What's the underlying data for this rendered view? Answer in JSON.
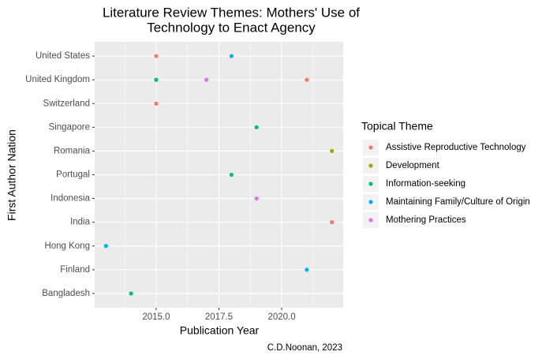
{
  "chart_data": {
    "type": "scatter",
    "title": [
      "Literature Review Themes: Mothers' Use of",
      "Technology to Enact Agency"
    ],
    "x_label": "Publication Year",
    "y_label": "First Author Nation",
    "caption": "C.D.Noonan, 2023",
    "legend_title": "Topical Theme",
    "legend": "right",
    "grid": true,
    "categories": [
      "Bangladesh",
      "Finland",
      "Hong Kong",
      "India",
      "Indonesia",
      "Portugal",
      "Romania",
      "Singapore",
      "Switzerland",
      "United Kingdom",
      "United States"
    ],
    "xlim": [
      2012.55,
      2022.45
    ],
    "xticks": [
      {
        "value": 2015,
        "label": "2015.0"
      },
      2017.5,
      {
        "value": 2020,
        "label": "2020.0"
      }
    ],
    "series": [
      {
        "name": "Assistive Reproductive Technology",
        "color": "#F8766D",
        "x": [
          2015,
          2015,
          2021,
          2015,
          2022
        ],
        "y": [
          "United States",
          "United Kingdom",
          "United Kingdom",
          "Switzerland",
          "India"
        ]
      },
      {
        "name": "Development",
        "color": "#A3A500",
        "x": [
          2022
        ],
        "y": [
          "Romania"
        ]
      },
      {
        "name": "Information-seeking",
        "color": "#00BF7D",
        "x": [
          2015,
          2019,
          2018,
          2014
        ],
        "y": [
          "United Kingdom",
          "Singapore",
          "Portugal",
          "Bangladesh"
        ]
      },
      {
        "name": "Maintaining Family/Culture of Origin",
        "color": "#00B0F6",
        "x": [
          2018,
          2013,
          2021
        ],
        "y": [
          "United States",
          "Hong Kong",
          "Finland"
        ]
      },
      {
        "name": "Mothering Practices",
        "color": "#E76BF3",
        "x": [
          2017,
          2019
        ],
        "y": [
          "United Kingdom",
          "Indonesia"
        ]
      }
    ]
  }
}
